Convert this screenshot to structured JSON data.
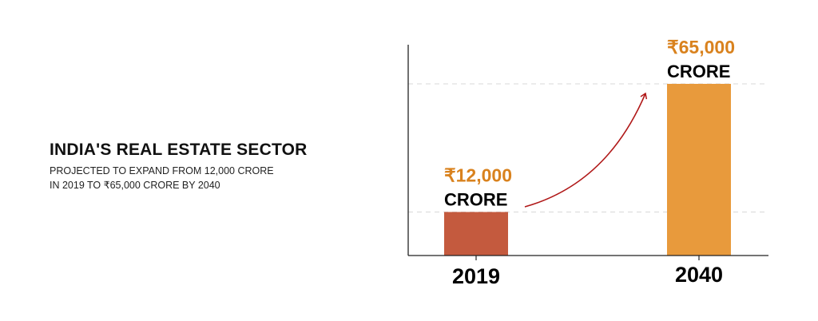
{
  "heading": {
    "title": "INDIA'S REAL ESTATE SECTOR",
    "subtitle_line1": "PROJECTED TO EXPAND FROM 12,000 CRORE",
    "subtitle_line2": "IN 2019 TO ₹65,000 CRORE BY 2040"
  },
  "chart_data": {
    "type": "bar",
    "categories": [
      "2019",
      "2040"
    ],
    "values": [
      12000,
      65000
    ],
    "value_labels": [
      "₹12,000",
      "₹65,000"
    ],
    "unit_label": "CRORE",
    "title": "",
    "xlabel": "",
    "ylabel": "",
    "ylim": [
      -6000,
      65000
    ],
    "grid": "dashed lines at bar tops",
    "annotation": "upward curved arrow from 2019 to 2040",
    "colors": {
      "bars": [
        "#c45a3e",
        "#e89a3c"
      ],
      "value_text": "#d9821e",
      "arrow": "#b01818",
      "grid": "#d8d8d8",
      "axis": "#222222"
    }
  }
}
